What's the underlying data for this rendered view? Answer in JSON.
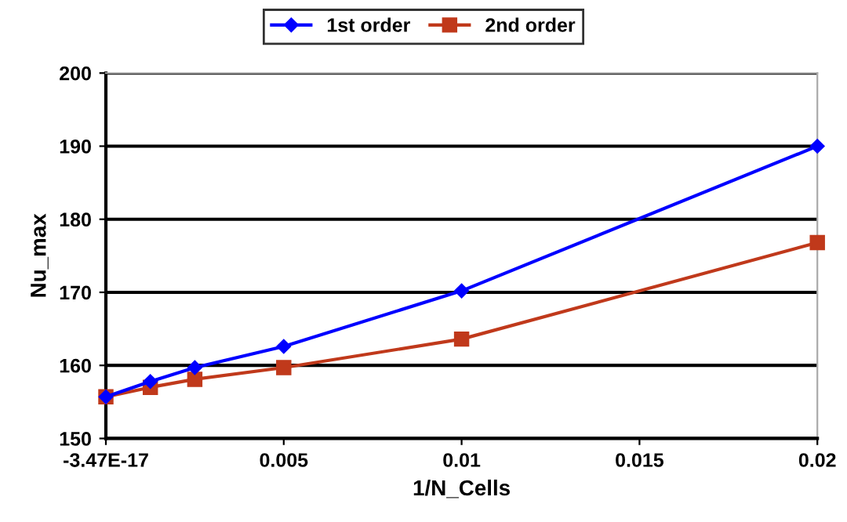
{
  "chart_data": {
    "type": "line",
    "xlabel": "1/N_Cells",
    "ylabel": "Nu_max",
    "x": [
      0,
      0.00125,
      0.0025,
      0.005,
      0.01,
      0.02
    ],
    "series": [
      {
        "name": "1st order",
        "color": "#0000ff",
        "marker": "diamond",
        "values": [
          155.7,
          157.8,
          159.7,
          162.6,
          170.2,
          190.0
        ]
      },
      {
        "name": "2nd order",
        "color": "#c0391b",
        "marker": "square",
        "values": [
          155.7,
          157.0,
          158.1,
          159.7,
          163.6,
          176.8
        ]
      }
    ],
    "xlim": [
      0,
      0.02
    ],
    "xticks": [
      {
        "value": 0,
        "label": "-3.47E-17"
      },
      0.005,
      0.01,
      0.015,
      0.02
    ],
    "ylim": [
      150,
      200
    ],
    "yticks": [
      150,
      160,
      170,
      180,
      190,
      200
    ],
    "grid": "y",
    "legend": "top",
    "line_style": "solid"
  }
}
